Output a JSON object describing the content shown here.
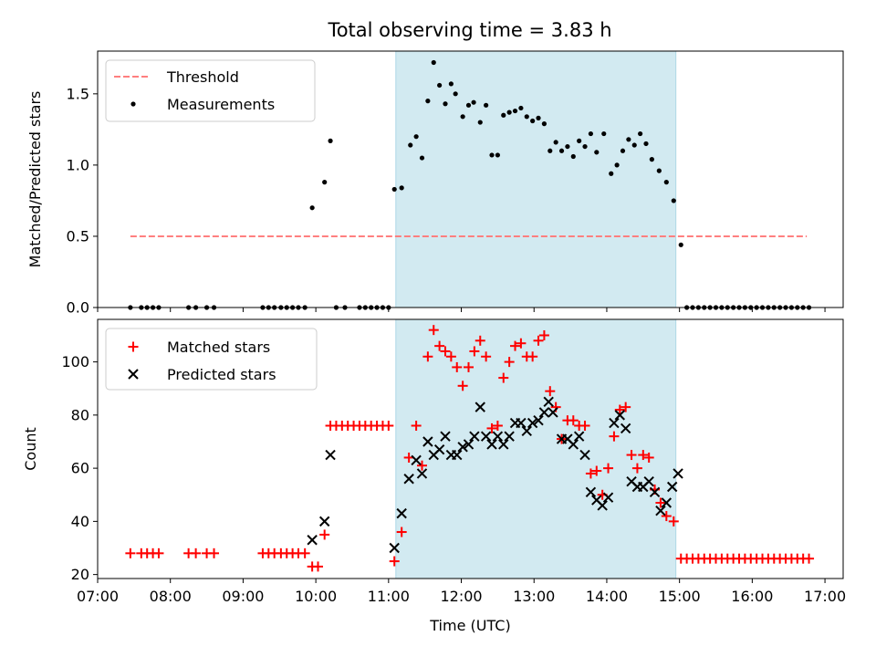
{
  "title": "Total observing time = 3.83 h",
  "chart_data": [
    {
      "type": "scatter",
      "ylabel": "Matched/Predicted stars",
      "xlabel": "",
      "ylim": [
        0,
        1.8
      ],
      "yticks": [
        0.0,
        0.5,
        1.0,
        1.5
      ],
      "ytick_labels": [
        "0.0",
        "0.5",
        "1.0",
        "1.5"
      ],
      "xlim": [
        7.0,
        17.25
      ],
      "xticks": [
        7,
        8,
        9,
        10,
        11,
        12,
        13,
        14,
        15,
        16,
        17
      ],
      "shaded_span": [
        11.1,
        14.95
      ],
      "shade_color": "#add8e6",
      "legend_position": "upper left",
      "threshold": {
        "name": "Threshold",
        "value": 0.5,
        "x_range": [
          7.45,
          16.75
        ],
        "color": "#ff7f7f"
      },
      "series": [
        {
          "name": "Measurements",
          "color": "#000000",
          "points": [
            [
              7.45,
              0
            ],
            [
              7.6,
              0
            ],
            [
              7.68,
              0
            ],
            [
              7.76,
              0
            ],
            [
              7.84,
              0
            ],
            [
              8.25,
              0
            ],
            [
              8.35,
              0
            ],
            [
              8.5,
              0
            ],
            [
              8.6,
              0
            ],
            [
              9.27,
              0
            ],
            [
              9.35,
              0
            ],
            [
              9.43,
              0
            ],
            [
              9.52,
              0
            ],
            [
              9.6,
              0
            ],
            [
              9.68,
              0
            ],
            [
              9.76,
              0
            ],
            [
              9.85,
              0
            ],
            [
              9.95,
              0.7
            ],
            [
              10.12,
              0.88
            ],
            [
              10.2,
              1.17
            ],
            [
              10.28,
              0
            ],
            [
              10.4,
              0
            ],
            [
              10.6,
              0
            ],
            [
              10.68,
              0
            ],
            [
              10.76,
              0
            ],
            [
              10.84,
              0
            ],
            [
              10.92,
              0
            ],
            [
              11.0,
              0
            ],
            [
              11.08,
              0.83
            ],
            [
              11.18,
              0.84
            ],
            [
              11.3,
              1.14
            ],
            [
              11.38,
              1.2
            ],
            [
              11.46,
              1.05
            ],
            [
              11.54,
              1.45
            ],
            [
              11.62,
              1.72
            ],
            [
              11.7,
              1.56
            ],
            [
              11.78,
              1.43
            ],
            [
              11.86,
              1.57
            ],
            [
              11.92,
              1.5
            ],
            [
              12.02,
              1.34
            ],
            [
              12.1,
              1.42
            ],
            [
              12.17,
              1.44
            ],
            [
              12.26,
              1.3
            ],
            [
              12.34,
              1.42
            ],
            [
              12.42,
              1.07
            ],
            [
              12.5,
              1.07
            ],
            [
              12.58,
              1.35
            ],
            [
              12.66,
              1.37
            ],
            [
              12.74,
              1.38
            ],
            [
              12.82,
              1.4
            ],
            [
              12.9,
              1.34
            ],
            [
              12.98,
              1.31
            ],
            [
              13.06,
              1.33
            ],
            [
              13.14,
              1.29
            ],
            [
              13.22,
              1.1
            ],
            [
              13.3,
              1.16
            ],
            [
              13.38,
              1.1
            ],
            [
              13.46,
              1.13
            ],
            [
              13.54,
              1.06
            ],
            [
              13.62,
              1.17
            ],
            [
              13.7,
              1.13
            ],
            [
              13.78,
              1.22
            ],
            [
              13.86,
              1.09
            ],
            [
              13.96,
              1.22
            ],
            [
              14.06,
              0.94
            ],
            [
              14.14,
              1.0
            ],
            [
              14.22,
              1.1
            ],
            [
              14.3,
              1.18
            ],
            [
              14.38,
              1.14
            ],
            [
              14.46,
              1.22
            ],
            [
              14.54,
              1.15
            ],
            [
              14.62,
              1.04
            ],
            [
              14.72,
              0.96
            ],
            [
              14.82,
              0.88
            ],
            [
              14.92,
              0.75
            ],
            [
              15.02,
              0.44
            ],
            [
              15.1,
              0
            ],
            [
              15.18,
              0
            ],
            [
              15.26,
              0
            ],
            [
              15.34,
              0
            ],
            [
              15.42,
              0
            ],
            [
              15.5,
              0
            ],
            [
              15.58,
              0
            ],
            [
              15.66,
              0
            ],
            [
              15.74,
              0
            ],
            [
              15.82,
              0
            ],
            [
              15.9,
              0
            ],
            [
              15.98,
              0
            ],
            [
              16.06,
              0
            ],
            [
              16.14,
              0
            ],
            [
              16.22,
              0
            ],
            [
              16.3,
              0
            ],
            [
              16.38,
              0
            ],
            [
              16.46,
              0
            ],
            [
              16.54,
              0
            ],
            [
              16.62,
              0
            ],
            [
              16.7,
              0
            ],
            [
              16.78,
              0
            ]
          ]
        }
      ]
    },
    {
      "type": "scatter",
      "ylabel": "Count",
      "xlabel": "Time (UTC)",
      "ylim": [
        18.5,
        116
      ],
      "yticks": [
        20,
        40,
        60,
        80,
        100
      ],
      "ytick_labels": [
        "20",
        "40",
        "60",
        "80",
        "100"
      ],
      "xlim": [
        7.0,
        17.25
      ],
      "xticks": [
        7,
        8,
        9,
        10,
        11,
        12,
        13,
        14,
        15,
        16,
        17
      ],
      "xtick_labels": [
        "07:00",
        "08:00",
        "09:00",
        "10:00",
        "11:00",
        "12:00",
        "13:00",
        "14:00",
        "15:00",
        "16:00",
        "17:00"
      ],
      "shaded_span": [
        11.1,
        14.95
      ],
      "shade_color": "#add8e6",
      "legend_position": "upper left",
      "series": [
        {
          "name": "Matched stars",
          "marker": "plus",
          "color": "#ff0000",
          "points": [
            [
              7.45,
              28
            ],
            [
              7.6,
              28
            ],
            [
              7.68,
              28
            ],
            [
              7.76,
              28
            ],
            [
              7.84,
              28
            ],
            [
              8.25,
              28
            ],
            [
              8.35,
              28
            ],
            [
              8.5,
              28
            ],
            [
              8.6,
              28
            ],
            [
              9.27,
              28
            ],
            [
              9.35,
              28
            ],
            [
              9.43,
              28
            ],
            [
              9.52,
              28
            ],
            [
              9.6,
              28
            ],
            [
              9.68,
              28
            ],
            [
              9.76,
              28
            ],
            [
              9.85,
              28
            ],
            [
              9.95,
              23
            ],
            [
              10.03,
              23
            ],
            [
              10.12,
              35
            ],
            [
              10.2,
              76
            ],
            [
              10.28,
              76
            ],
            [
              10.36,
              76
            ],
            [
              10.44,
              76
            ],
            [
              10.52,
              76
            ],
            [
              10.6,
              76
            ],
            [
              10.68,
              76
            ],
            [
              10.76,
              76
            ],
            [
              10.84,
              76
            ],
            [
              10.92,
              76
            ],
            [
              11.0,
              76
            ],
            [
              11.08,
              25
            ],
            [
              11.18,
              36
            ],
            [
              11.28,
              64
            ],
            [
              11.38,
              76
            ],
            [
              11.46,
              61
            ],
            [
              11.54,
              102
            ],
            [
              11.62,
              112
            ],
            [
              11.7,
              106
            ],
            [
              11.78,
              104
            ],
            [
              11.86,
              102
            ],
            [
              11.94,
              98
            ],
            [
              12.02,
              91
            ],
            [
              12.1,
              98
            ],
            [
              12.18,
              104
            ],
            [
              12.26,
              108
            ],
            [
              12.34,
              102
            ],
            [
              12.42,
              75
            ],
            [
              12.5,
              76
            ],
            [
              12.58,
              94
            ],
            [
              12.66,
              100
            ],
            [
              12.74,
              106
            ],
            [
              12.82,
              107
            ],
            [
              12.9,
              102
            ],
            [
              12.98,
              102
            ],
            [
              13.06,
              108
            ],
            [
              13.14,
              110
            ],
            [
              13.22,
              89
            ],
            [
              13.3,
              83
            ],
            [
              13.38,
              71
            ],
            [
              13.46,
              78
            ],
            [
              13.54,
              78
            ],
            [
              13.62,
              76
            ],
            [
              13.7,
              76
            ],
            [
              13.78,
              58
            ],
            [
              13.86,
              59
            ],
            [
              13.94,
              50
            ],
            [
              14.02,
              60
            ],
            [
              14.1,
              72
            ],
            [
              14.18,
              82
            ],
            [
              14.26,
              83
            ],
            [
              14.34,
              65
            ],
            [
              14.42,
              60
            ],
            [
              14.5,
              65
            ],
            [
              14.58,
              64
            ],
            [
              14.66,
              52
            ],
            [
              14.74,
              47
            ],
            [
              14.82,
              42
            ],
            [
              14.92,
              40
            ],
            [
              15.02,
              26
            ],
            [
              15.1,
              26
            ],
            [
              15.18,
              26
            ],
            [
              15.26,
              26
            ],
            [
              15.34,
              26
            ],
            [
              15.42,
              26
            ],
            [
              15.5,
              26
            ],
            [
              15.58,
              26
            ],
            [
              15.66,
              26
            ],
            [
              15.74,
              26
            ],
            [
              15.82,
              26
            ],
            [
              15.9,
              26
            ],
            [
              15.98,
              26
            ],
            [
              16.06,
              26
            ],
            [
              16.14,
              26
            ],
            [
              16.22,
              26
            ],
            [
              16.3,
              26
            ],
            [
              16.38,
              26
            ],
            [
              16.46,
              26
            ],
            [
              16.54,
              26
            ],
            [
              16.62,
              26
            ],
            [
              16.7,
              26
            ],
            [
              16.78,
              26
            ]
          ]
        },
        {
          "name": "Predicted stars",
          "marker": "x",
          "color": "#000000",
          "points": [
            [
              9.95,
              33
            ],
            [
              10.12,
              40
            ],
            [
              10.2,
              65
            ],
            [
              11.08,
              30
            ],
            [
              11.18,
              43
            ],
            [
              11.28,
              56
            ],
            [
              11.38,
              63
            ],
            [
              11.46,
              58
            ],
            [
              11.54,
              70
            ],
            [
              11.62,
              65
            ],
            [
              11.7,
              67
            ],
            [
              11.78,
              72
            ],
            [
              11.86,
              65
            ],
            [
              11.94,
              65
            ],
            [
              12.02,
              68
            ],
            [
              12.1,
              69
            ],
            [
              12.18,
              72
            ],
            [
              12.26,
              83
            ],
            [
              12.34,
              72
            ],
            [
              12.42,
              69
            ],
            [
              12.5,
              72
            ],
            [
              12.58,
              69
            ],
            [
              12.66,
              72
            ],
            [
              12.74,
              77
            ],
            [
              12.82,
              77
            ],
            [
              12.9,
              74
            ],
            [
              12.98,
              77
            ],
            [
              13.06,
              78
            ],
            [
              13.14,
              81
            ],
            [
              13.2,
              85
            ],
            [
              13.26,
              81
            ],
            [
              13.38,
              71
            ],
            [
              13.46,
              71
            ],
            [
              13.54,
              69
            ],
            [
              13.62,
              72
            ],
            [
              13.7,
              65
            ],
            [
              13.78,
              51
            ],
            [
              13.86,
              48
            ],
            [
              13.94,
              46
            ],
            [
              14.02,
              49
            ],
            [
              14.1,
              77
            ],
            [
              14.18,
              80
            ],
            [
              14.26,
              75
            ],
            [
              14.34,
              55
            ],
            [
              14.42,
              53
            ],
            [
              14.5,
              53
            ],
            [
              14.58,
              55
            ],
            [
              14.66,
              51
            ],
            [
              14.74,
              44
            ],
            [
              14.82,
              47
            ],
            [
              14.9,
              53
            ],
            [
              14.98,
              58
            ]
          ]
        }
      ]
    }
  ]
}
